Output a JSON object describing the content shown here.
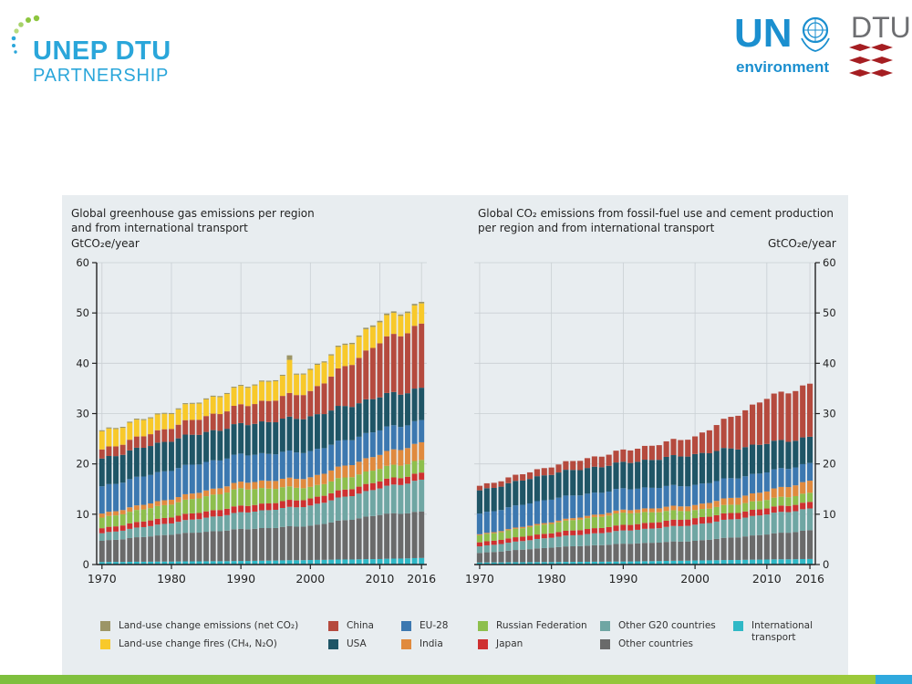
{
  "header": {
    "left_logo_line1": "UNEP DTU",
    "left_logo_line2": "PARTNERSHIP",
    "right_logo_un": "UN",
    "right_logo_env": "environment",
    "right_logo_dtu": "DTU"
  },
  "colors": {
    "intl": "#2fb8c6",
    "other": "#6a6a6a",
    "g20": "#6fa6a3",
    "japan": "#cf3030",
    "russia": "#8dbf4d",
    "india": "#e08a3e",
    "eu": "#3c78b0",
    "usa": "#1f5566",
    "china": "#b54a3e",
    "fires": "#f8c92a",
    "luc": "#9c9566"
  },
  "legend": [
    {
      "key": "luc",
      "label": "Land-use change emissions (net CO₂)"
    },
    {
      "key": "fires",
      "label": "Land-use change fires (CH₄, N₂O)"
    },
    {
      "key": "china",
      "label": "China"
    },
    {
      "key": "usa",
      "label": "USA"
    },
    {
      "key": "eu",
      "label": "EU-28"
    },
    {
      "key": "india",
      "label": "India"
    },
    {
      "key": "russia",
      "label": "Russian Federation"
    },
    {
      "key": "japan",
      "label": "Japan"
    },
    {
      "key": "g20",
      "label": "Other G20 countries"
    },
    {
      "key": "other",
      "label": "Other countries"
    },
    {
      "key": "intl",
      "label": "International transport"
    }
  ],
  "chart_data": [
    {
      "type": "bar",
      "stacked": true,
      "title": "Global greenhouse gas emissions per region and from international transport",
      "title_lines": [
        "Global greenhouse gas emissions per region",
        "and from international transport"
      ],
      "ylabel": "GtCO₂e/year",
      "ylim": [
        0,
        60
      ],
      "yticks": [
        0,
        10,
        20,
        30,
        40,
        50,
        60
      ],
      "xticks": [
        "1970",
        "1980",
        "1990",
        "2000",
        "2010",
        "2016"
      ],
      "x_range": [
        1970,
        2016
      ],
      "series_order": [
        "intl",
        "other",
        "g20",
        "japan",
        "russia",
        "india",
        "eu",
        "usa",
        "china",
        "fires",
        "luc"
      ],
      "anchors": {
        "intl": [
          [
            1970,
            0.5
          ],
          [
            1980,
            0.6
          ],
          [
            1990,
            0.7
          ],
          [
            2000,
            0.9
          ],
          [
            2010,
            1.1
          ],
          [
            2016,
            1.3
          ]
        ],
        "other": [
          [
            1970,
            4.2
          ],
          [
            1980,
            5.4
          ],
          [
            1990,
            6.3
          ],
          [
            2000,
            6.8
          ],
          [
            2010,
            8.8
          ],
          [
            2016,
            9.2
          ]
        ],
        "g20": [
          [
            1970,
            1.5
          ],
          [
            1980,
            2.3
          ],
          [
            1990,
            3.3
          ],
          [
            2000,
            4.0
          ],
          [
            2010,
            5.3
          ],
          [
            2016,
            6.3
          ]
        ],
        "japan": [
          [
            1970,
            1.0
          ],
          [
            1980,
            1.2
          ],
          [
            1990,
            1.3
          ],
          [
            2000,
            1.4
          ],
          [
            2010,
            1.4
          ],
          [
            2016,
            1.4
          ]
        ],
        "russia": [
          [
            1970,
            2.1
          ],
          [
            1980,
            2.6
          ],
          [
            1990,
            3.4
          ],
          [
            2000,
            2.3
          ],
          [
            2010,
            2.5
          ],
          [
            2016,
            2.5
          ]
        ],
        "india": [
          [
            1970,
            0.8
          ],
          [
            1980,
            1.0
          ],
          [
            1990,
            1.3
          ],
          [
            2000,
            1.9
          ],
          [
            2010,
            2.8
          ],
          [
            2016,
            3.5
          ]
        ],
        "eu": [
          [
            1970,
            5.4
          ],
          [
            1980,
            5.8
          ],
          [
            1990,
            5.5
          ],
          [
            2000,
            5.2
          ],
          [
            2010,
            4.9
          ],
          [
            2016,
            4.4
          ]
        ],
        "usa": [
          [
            1970,
            5.5
          ],
          [
            1980,
            5.9
          ],
          [
            1990,
            6.0
          ],
          [
            2000,
            6.9
          ],
          [
            2010,
            6.6
          ],
          [
            2016,
            6.4
          ]
        ],
        "china": [
          [
            1970,
            1.8
          ],
          [
            1980,
            2.6
          ],
          [
            1990,
            3.7
          ],
          [
            2000,
            5.0
          ],
          [
            2010,
            10.8
          ],
          [
            2016,
            12.7
          ]
        ],
        "fires": [
          [
            1970,
            3.6
          ],
          [
            1980,
            3.0
          ],
          [
            1990,
            3.6
          ],
          [
            2000,
            4.2
          ],
          [
            2010,
            4.2
          ],
          [
            2016,
            4.0
          ]
        ],
        "luc": [
          [
            1970,
            0.2
          ],
          [
            1980,
            0.2
          ],
          [
            1990,
            0.2
          ],
          [
            2000,
            0.2
          ],
          [
            2010,
            0.3
          ],
          [
            2016,
            0.3
          ]
        ]
      },
      "bumps": [
        {
          "year": 1997,
          "series": "fires",
          "value": 2.5
        },
        {
          "year": 1997,
          "series": "luc",
          "value": 0.7
        }
      ]
    },
    {
      "type": "bar",
      "stacked": true,
      "title": "Global CO₂ emissions from fossil-fuel use and cement production per region and from international transport",
      "title_lines": [
        "Global CO₂ emissions from fossil-fuel use and cement production",
        "per region and from international transport"
      ],
      "ylabel": "GtCO₂e/year",
      "ylim": [
        0,
        60
      ],
      "yticks": [
        0,
        10,
        20,
        30,
        40,
        50,
        60
      ],
      "xticks": [
        "1970",
        "1980",
        "1990",
        "2000",
        "2010",
        "2016"
      ],
      "x_range": [
        1970,
        2016
      ],
      "series_order": [
        "intl",
        "other",
        "g20",
        "japan",
        "russia",
        "india",
        "eu",
        "usa",
        "china"
      ],
      "anchors": {
        "intl": [
          [
            1970,
            0.4
          ],
          [
            1980,
            0.5
          ],
          [
            1990,
            0.6
          ],
          [
            2000,
            0.8
          ],
          [
            2010,
            1.0
          ],
          [
            2016,
            1.1
          ]
        ],
        "other": [
          [
            1970,
            1.9
          ],
          [
            1980,
            2.9
          ],
          [
            1990,
            3.5
          ],
          [
            2000,
            3.9
          ],
          [
            2010,
            5.0
          ],
          [
            2016,
            5.7
          ]
        ],
        "g20": [
          [
            1970,
            1.3
          ],
          [
            1980,
            2.0
          ],
          [
            1990,
            2.6
          ],
          [
            2000,
            3.2
          ],
          [
            2010,
            4.0
          ],
          [
            2016,
            4.3
          ]
        ],
        "japan": [
          [
            1970,
            0.8
          ],
          [
            1980,
            0.9
          ],
          [
            1990,
            1.1
          ],
          [
            2000,
            1.3
          ],
          [
            2010,
            1.2
          ],
          [
            2016,
            1.3
          ]
        ],
        "russia": [
          [
            1970,
            1.4
          ],
          [
            1980,
            1.9
          ],
          [
            1990,
            2.4
          ],
          [
            2000,
            1.6
          ],
          [
            2010,
            1.7
          ],
          [
            2016,
            1.8
          ]
        ],
        "india": [
          [
            1970,
            0.2
          ],
          [
            1980,
            0.3
          ],
          [
            1990,
            0.6
          ],
          [
            2000,
            1.0
          ],
          [
            2010,
            1.7
          ],
          [
            2016,
            2.4
          ]
        ],
        "eu": [
          [
            1970,
            4.1
          ],
          [
            1980,
            4.6
          ],
          [
            1990,
            4.2
          ],
          [
            2000,
            4.0
          ],
          [
            2010,
            3.8
          ],
          [
            2016,
            3.5
          ]
        ],
        "usa": [
          [
            1970,
            4.6
          ],
          [
            1980,
            5.0
          ],
          [
            1990,
            5.2
          ],
          [
            2000,
            6.1
          ],
          [
            2010,
            5.7
          ],
          [
            2016,
            5.2
          ]
        ],
        "china": [
          [
            1970,
            0.9
          ],
          [
            1980,
            1.5
          ],
          [
            1990,
            2.4
          ],
          [
            2000,
            3.5
          ],
          [
            2010,
            9.0
          ],
          [
            2016,
            10.5
          ]
        ]
      },
      "bumps": []
    }
  ]
}
